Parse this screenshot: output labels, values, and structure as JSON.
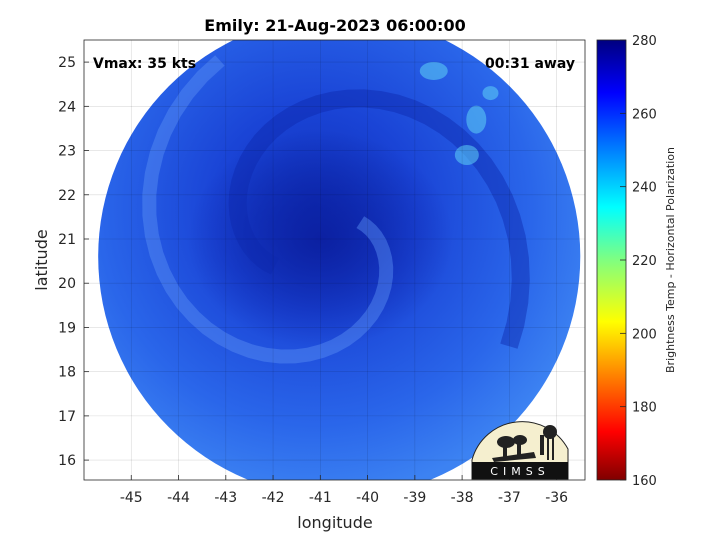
{
  "chart_data": {
    "type": "heatmap",
    "title": "Emily: 21-Aug-2023 06:00:00",
    "xlabel": "longitude",
    "ylabel": "latitude",
    "xlim": [
      -46.0,
      -35.4
    ],
    "ylim": [
      15.55,
      25.5
    ],
    "x_ticks": [
      -45,
      -44,
      -43,
      -42,
      -41,
      -40,
      -39,
      -38,
      -37,
      -36
    ],
    "y_ticks": [
      16,
      17,
      18,
      19,
      20,
      21,
      22,
      23,
      24,
      25
    ],
    "grid": true,
    "annotations": {
      "top_left": "Vmax: 35 kts",
      "top_right": "00:31 away"
    },
    "colorbar": {
      "label": "Brightness Temp - Horizontal Polarization",
      "range": [
        160,
        280
      ],
      "ticks": [
        160,
        180,
        200,
        220,
        240,
        260,
        280
      ],
      "colormap": "jet"
    },
    "swath": {
      "shape": "circle",
      "center_lon": -40.6,
      "center_lat": 20.6,
      "radius_lon": 5.1
    },
    "storm_center": {
      "lon": -41.0,
      "lat": 21.0
    },
    "logo": {
      "text": "CIMSS"
    }
  }
}
